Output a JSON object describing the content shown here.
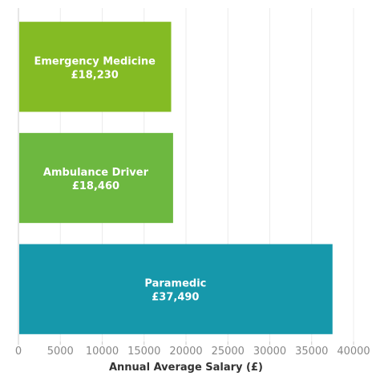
{
  "chart_data": {
    "type": "bar",
    "orientation": "horizontal",
    "categories": [
      "Emergency Medicine",
      "Ambulance Driver",
      "Paramedic"
    ],
    "values": [
      18230,
      18460,
      37490
    ],
    "value_labels": [
      "£18,230",
      "£18,460",
      "£37,490"
    ],
    "colors": [
      "#84bb24",
      "#6db840",
      "#1698ab"
    ],
    "xlabel": "Annual Average Salary (£)",
    "ylabel": "",
    "xlim": [
      0,
      40000
    ],
    "xticks": [
      0,
      5000,
      10000,
      15000,
      20000,
      25000,
      30000,
      35000,
      40000
    ],
    "xtick_labels": [
      "0",
      "5000",
      "10000",
      "15000",
      "20000",
      "25000",
      "30000",
      "35000",
      "40000"
    ],
    "grid": true,
    "legend": "none"
  }
}
